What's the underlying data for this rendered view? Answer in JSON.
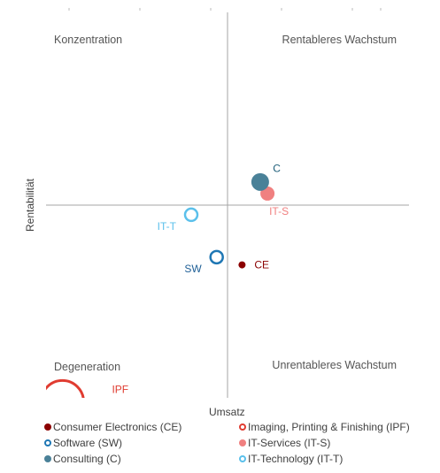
{
  "chart_data": {
    "type": "scatter",
    "subtype": "portfolio-matrix",
    "xlabel": "Umsatz",
    "ylabel": "Rentabilität",
    "quadrants": {
      "top_left": "Konzentration",
      "top_right": "Rentableres Wachstum",
      "bottom_left": "Degeneration",
      "bottom_right": "Unrentableres Wachstum"
    },
    "grid": false,
    "axes_cross_at_center": true,
    "xlim": [
      -1,
      1
    ],
    "ylim": [
      -1,
      1
    ],
    "legend_position": "bottom",
    "series": [
      {
        "name": "Consumer Electronics (CE)",
        "label": "CE",
        "x": 0.08,
        "y": -0.31,
        "size": 4,
        "color": "#8b0000",
        "style": "filled",
        "label_color": "#8b0000",
        "label_pos": "right"
      },
      {
        "name": "Imaging, Printing & Finishing (IPF)",
        "label": "IPF",
        "x": -0.91,
        "y": -1.02,
        "size": 24,
        "color": "#e03c31",
        "style": "ring",
        "label_color": "#e03c31",
        "label_pos": "upper-right"
      },
      {
        "name": "Software (SW)",
        "label": "SW",
        "x": -0.06,
        "y": -0.27,
        "size": 7,
        "color": "#1f77b4",
        "style": "ring",
        "label_color": "#1f5f96",
        "label_pos": "lower-left"
      },
      {
        "name": "IT-Services (IT-S)",
        "label": "IT-S",
        "x": 0.22,
        "y": 0.06,
        "size": 8,
        "color": "#f08080",
        "style": "filled",
        "label_color": "#f08080",
        "label_pos": "below"
      },
      {
        "name": "Consulting (C)",
        "label": "C",
        "x": 0.18,
        "y": 0.12,
        "size": 10,
        "color": "#4a8198",
        "style": "filled",
        "label_color": "#1f5f7a",
        "label_pos": "upper-right"
      },
      {
        "name": "IT-Technology (IT-T)",
        "label": "IT-T",
        "x": -0.2,
        "y": -0.05,
        "size": 7,
        "color": "#5bc0eb",
        "style": "ring",
        "label_color": "#5bc0eb",
        "label_pos": "lower-left"
      }
    ]
  },
  "legend": [
    {
      "label": "Consumer Electronics (CE)",
      "color": "#8b0000",
      "style": "filled"
    },
    {
      "label": "Imaging, Printing & Finishing (IPF)",
      "color": "#e03c31",
      "style": "ring"
    },
    {
      "label": "Software (SW)",
      "color": "#1f77b4",
      "style": "ring"
    },
    {
      "label": "IT-Services (IT-S)",
      "color": "#f08080",
      "style": "filled"
    },
    {
      "label": "Consulting (C)",
      "color": "#4a8198",
      "style": "filled"
    },
    {
      "label": "IT-Technology (IT-T)",
      "color": "#5bc0eb",
      "style": "ring"
    }
  ]
}
